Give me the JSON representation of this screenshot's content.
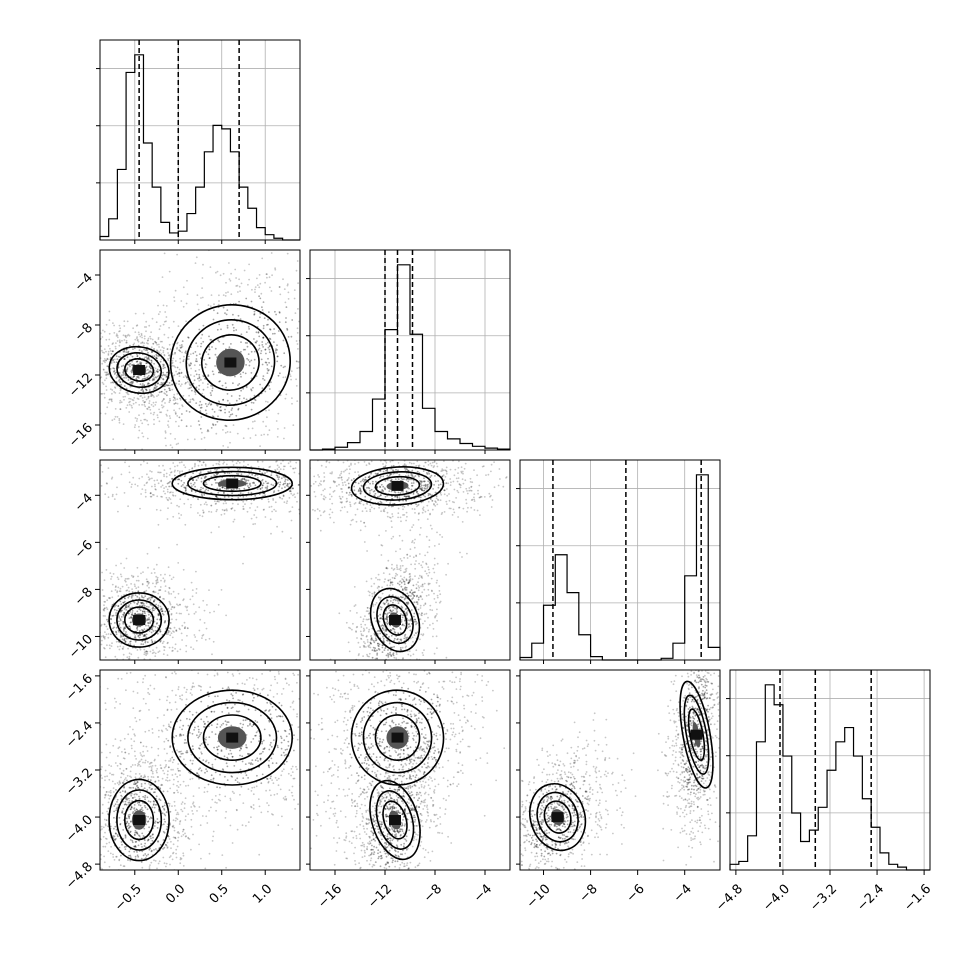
{
  "chart_data": {
    "type": "corner",
    "title": "",
    "parameters": [
      {
        "name": "",
        "range": [
          -0.9,
          1.4
        ],
        "ticks": [
          -0.5,
          0.0,
          0.5,
          1.0
        ],
        "tick_labels": [
          "−0.5",
          "0.0",
          "0.5",
          "1.0"
        ],
        "quantiles": [
          -0.45,
          0.0,
          0.7
        ]
      },
      {
        "name": "",
        "range": [
          -18,
          -2
        ],
        "ticks": [
          -16,
          -12,
          -8,
          -4
        ],
        "tick_labels": [
          "−16",
          "−12",
          "−8",
          "−4"
        ],
        "quantiles": [
          -12.0,
          -11.0,
          -9.8
        ]
      },
      {
        "name": "",
        "range": [
          -11,
          -2.5
        ],
        "ticks": [
          -10,
          -8,
          -6,
          -4
        ],
        "tick_labels": [
          "−10",
          "−8",
          "−6",
          "−4"
        ],
        "quantiles": [
          -9.6,
          -6.5,
          -3.3
        ]
      },
      {
        "name": "",
        "range": [
          -4.9,
          -1.5
        ],
        "ticks": [
          -4.8,
          -4.0,
          -3.2,
          -2.4,
          -1.6
        ],
        "tick_labels": [
          "−4.8",
          "−4.0",
          "−3.2",
          "−2.4",
          "−1.6"
        ],
        "quantiles": [
          -4.05,
          -3.45,
          -2.5
        ]
      }
    ],
    "diagonal_histograms": [
      {
        "param": 0,
        "bin_edges": [
          -0.9,
          -0.8,
          -0.7,
          -0.6,
          -0.5,
          -0.4,
          -0.3,
          -0.2,
          -0.1,
          0.0,
          0.1,
          0.2,
          0.3,
          0.4,
          0.5,
          0.6,
          0.7,
          0.8,
          0.9,
          1.0,
          1.1,
          1.2,
          1.3,
          1.4
        ],
        "counts": [
          2,
          12,
          40,
          95,
          105,
          55,
          30,
          10,
          4,
          5,
          15,
          30,
          50,
          65,
          63,
          50,
          30,
          18,
          7,
          3,
          1,
          0,
          0
        ]
      },
      {
        "param": 1,
        "bin_edges": [
          -18,
          -17,
          -16,
          -15,
          -14,
          -13,
          -12,
          -11,
          -10,
          -9,
          -8,
          -7,
          -6,
          -5,
          -4,
          -3,
          -2
        ],
        "counts": [
          0,
          1,
          3,
          8,
          20,
          55,
          130,
          200,
          125,
          45,
          20,
          12,
          7,
          4,
          2,
          1
        ]
      },
      {
        "param": 2,
        "bin_edges": [
          -11,
          -10.5,
          -10,
          -9.5,
          -9,
          -8.5,
          -8,
          -7.5,
          -7,
          -6.5,
          -6,
          -5.5,
          -5,
          -4.5,
          -4,
          -3.5,
          -3,
          -2.5
        ],
        "counts": [
          3,
          20,
          65,
          125,
          80,
          30,
          4,
          0,
          0,
          0,
          0,
          0,
          2,
          20,
          100,
          220,
          15
        ]
      },
      {
        "param": 3,
        "bin_edges": [
          -4.9,
          -4.75,
          -4.6,
          -4.45,
          -4.3,
          -4.15,
          -4.0,
          -3.85,
          -3.7,
          -3.55,
          -3.4,
          -3.25,
          -3.1,
          -2.95,
          -2.8,
          -2.65,
          -2.5,
          -2.35,
          -2.2,
          -2.05,
          -1.9,
          -1.75,
          -1.6,
          -1.5
        ],
        "counts": [
          2,
          3,
          12,
          45,
          65,
          58,
          40,
          20,
          10,
          14,
          22,
          35,
          45,
          50,
          40,
          25,
          15,
          6,
          2,
          1,
          0,
          0,
          0
        ]
      }
    ],
    "joint_panels": [
      {
        "x_param": 0,
        "y_param": 1,
        "modes": [
          {
            "x": -0.45,
            "y": -11.6,
            "sx": 0.15,
            "sy": 0.8,
            "rot": -0.3,
            "weight": 0.5
          },
          {
            "x": 0.6,
            "y": -11.0,
            "sx": 0.3,
            "sy": 2.0,
            "rot": 0.5,
            "weight": 0.5
          }
        ]
      },
      {
        "x_param": 0,
        "y_param": 2,
        "modes": [
          {
            "x": -0.45,
            "y": -9.3,
            "sx": 0.15,
            "sy": 0.5,
            "rot": 0.0,
            "weight": 0.5
          },
          {
            "x": 0.62,
            "y": -3.5,
            "sx": 0.3,
            "sy": 0.3,
            "rot": 0.0,
            "weight": 0.5
          }
        ]
      },
      {
        "x_param": 1,
        "y_param": 2,
        "modes": [
          {
            "x": -11.2,
            "y": -9.3,
            "sx": 0.8,
            "sy": 0.6,
            "rot": 0.6,
            "weight": 0.5
          },
          {
            "x": -11.0,
            "y": -3.6,
            "sx": 1.6,
            "sy": 0.35,
            "rot": 0.1,
            "weight": 0.5
          }
        ]
      },
      {
        "x_param": 0,
        "y_param": 3,
        "modes": [
          {
            "x": -0.45,
            "y": -4.05,
            "sx": 0.15,
            "sy": 0.3,
            "rot": 0.0,
            "weight": 0.5
          },
          {
            "x": 0.62,
            "y": -2.65,
            "sx": 0.3,
            "sy": 0.35,
            "rot": 0.0,
            "weight": 0.5
          }
        ]
      },
      {
        "x_param": 1,
        "y_param": 3,
        "modes": [
          {
            "x": -11.2,
            "y": -4.05,
            "sx": 0.8,
            "sy": 0.3,
            "rot": 0.5,
            "weight": 0.5
          },
          {
            "x": -11.0,
            "y": -2.65,
            "sx": 1.6,
            "sy": 0.35,
            "rot": 0.3,
            "weight": 0.5
          }
        ]
      },
      {
        "x_param": 2,
        "y_param": 3,
        "modes": [
          {
            "x": -9.4,
            "y": -4.0,
            "sx": 0.5,
            "sy": 0.25,
            "rot": 0.5,
            "weight": 0.5
          },
          {
            "x": -3.5,
            "y": -2.6,
            "sx": 0.25,
            "sy": 0.4,
            "rot": 0.3,
            "weight": 0.5
          }
        ]
      }
    ],
    "grid": true,
    "legend": "none"
  }
}
